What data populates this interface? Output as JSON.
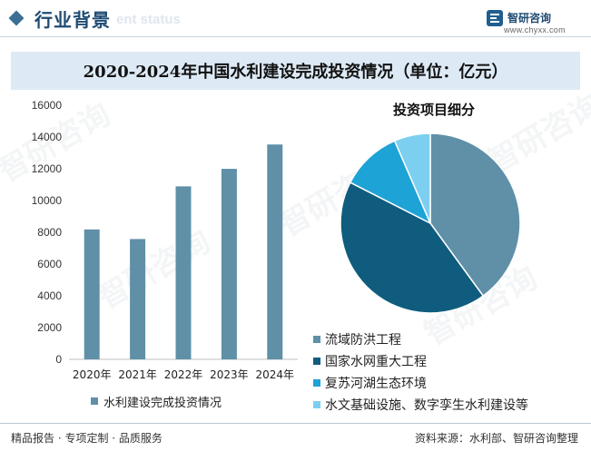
{
  "header": {
    "title": "行业背景",
    "subtitle_watermark": "ent status",
    "brand_name": "智研咨询",
    "brand_url": "www.chyxx.com"
  },
  "watermark_text": "智研咨询",
  "footer": {
    "left": "精品报告 · 专项定制 · 品质服务",
    "right": "资料来源：水利部、智研咨询整理"
  },
  "colors": {
    "bar": "#5f90a8",
    "pie": [
      "#5f90a8",
      "#0f5c7e",
      "#1ea3d6",
      "#7dcff0"
    ]
  },
  "chart_data": [
    {
      "type": "bar",
      "title": "2020-2024年中国水利建设完成投资情况（单位：亿元）",
      "categories": [
        "2020年",
        "2021年",
        "2022年",
        "2023年",
        "2024年"
      ],
      "series": [
        {
          "name": "水利建设完成投资情况",
          "values": [
            8180,
            7576,
            10893,
            11996,
            13529
          ]
        }
      ],
      "ylim": [
        0,
        16000
      ],
      "yticks": [
        0,
        2000,
        4000,
        6000,
        8000,
        10000,
        12000,
        14000,
        16000
      ],
      "legend": "bottom"
    },
    {
      "type": "pie",
      "title": "投资项目细分",
      "labels": [
        "流域防洪工程",
        "国家水网重大工程",
        "复苏河湖生态环境",
        "水文基础设施、数字孪生水利建设等"
      ],
      "values": [
        40.0,
        42.5,
        11.0,
        6.5
      ],
      "legend": "bottom-right"
    }
  ]
}
